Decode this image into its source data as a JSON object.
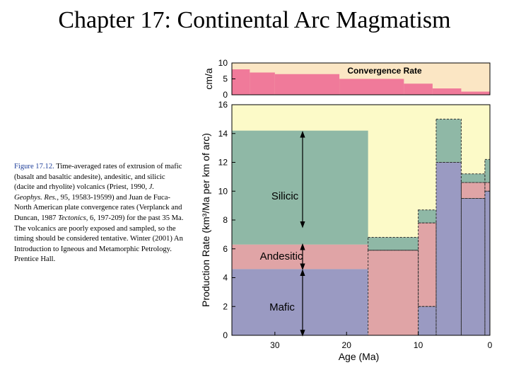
{
  "slide": {
    "title": "Chapter 17: Continental Arc Magmatism"
  },
  "caption": {
    "label": "Figure 17.12.",
    "p1": " Time-averaged rates of extrusion of mafic (basalt and basaltic andesite), andesitic, and silicic (dacite and rhyolite) volcanics (Priest, 1990, ",
    "i1": "J. Geophys. Res.",
    "p2": ", 95, 19583-19599) and Juan de Fuca-North American plate convergence rates (Verplanck and Duncan, 1987 ",
    "i2": "Tectonics",
    "p3": ", 6, 197-209) for the past 35 Ma. The volcanics are poorly exposed and sampled, so the timing should be considered tentative. Winter (2001) An Introduction to Igneous and Metamorphic Petrology. Prentice Hall."
  },
  "colors": {
    "mafic": "#9a9ac2",
    "andesitic": "#e0a4a6",
    "silicic": "#8fb8a6",
    "background": "#fcfac8",
    "convergence": "#f07a9a",
    "convergence_bg": "#fbe6c4"
  },
  "chart_data": [
    {
      "type": "area",
      "title": "Convergence Rate",
      "ylabel": "cm/a",
      "xlabel": "",
      "xlim": [
        36,
        0
      ],
      "ylim": [
        0,
        10
      ],
      "yticks": [
        0,
        5,
        10
      ],
      "series": [
        {
          "name": "Convergence Rate",
          "steps": [
            [
              36,
              33.5,
              8
            ],
            [
              33.5,
              30,
              7
            ],
            [
              30,
              21,
              6.5
            ],
            [
              21,
              12,
              5
            ],
            [
              12,
              8,
              3.5
            ],
            [
              8,
              4,
              2
            ],
            [
              4,
              0,
              1
            ]
          ]
        }
      ]
    },
    {
      "type": "area",
      "title": "",
      "ylabel": "Production Rate (km³/Ma per km of arc)",
      "xlabel": "Age (Ma)",
      "xlim": [
        36,
        0
      ],
      "ylim": [
        0,
        16
      ],
      "xticks": [
        30,
        20,
        10,
        0
      ],
      "yticks": [
        0,
        2,
        4,
        6,
        8,
        10,
        12,
        14,
        16
      ],
      "series": [
        {
          "name": "Mafic",
          "steps": [
            [
              36,
              17,
              4.6
            ],
            [
              17,
              10,
              0
            ],
            [
              10,
              7.5,
              2
            ],
            [
              7.5,
              4,
              12
            ],
            [
              4,
              0.7,
              9.5
            ],
            [
              0.7,
              0,
              10
            ]
          ]
        },
        {
          "name": "Andesitic",
          "steps": [
            [
              36,
              17,
              1.7
            ],
            [
              17,
              10,
              5.9
            ],
            [
              10,
              7.5,
              5.8
            ],
            [
              7.5,
              4,
              0
            ],
            [
              4,
              0.7,
              1.1
            ],
            [
              0.7,
              0,
              0.6
            ]
          ]
        },
        {
          "name": "Silicic",
          "steps": [
            [
              36,
              17,
              7.9
            ],
            [
              17,
              10,
              0.9
            ],
            [
              10,
              7.5,
              0.9
            ],
            [
              7.5,
              4,
              3
            ],
            [
              4,
              0.7,
              0.6
            ],
            [
              0.7,
              0,
              1.6
            ]
          ]
        }
      ],
      "annotations": [
        "Silicic",
        "Andesitic",
        "Mafic"
      ]
    }
  ]
}
